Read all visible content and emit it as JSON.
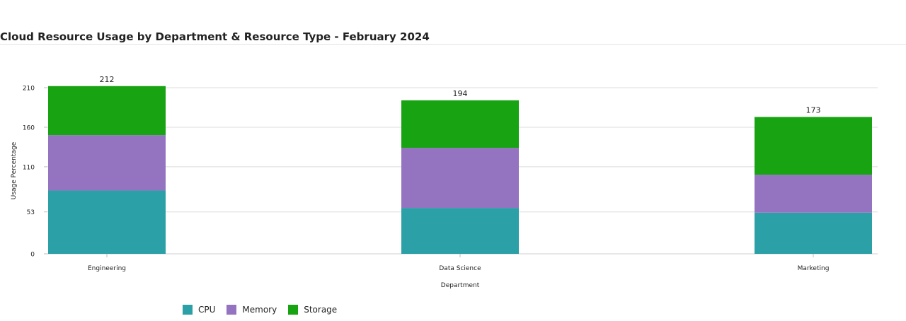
{
  "chart_data": {
    "type": "bar",
    "stacked": true,
    "title": "Cloud Resource Usage by Department & Resource Type - February 2024",
    "xlabel": "Department",
    "ylabel": "Usage Percentage",
    "categories": [
      "Engineering",
      "Data Science",
      "Marketing"
    ],
    "series": [
      {
        "name": "CPU",
        "color": "#2ca0a7",
        "values": [
          80,
          58,
          52
        ]
      },
      {
        "name": "Memory",
        "color": "#9474c1",
        "values": [
          70,
          76,
          48
        ]
      },
      {
        "name": "Storage",
        "color": "#17a312",
        "values": [
          62,
          60,
          73
        ]
      }
    ],
    "totals": [
      212,
      194,
      173
    ],
    "yticks": [
      0,
      53,
      110,
      160,
      210
    ],
    "ylim": [
      0,
      210
    ],
    "grid": true,
    "legend_position": "bottom-left"
  }
}
